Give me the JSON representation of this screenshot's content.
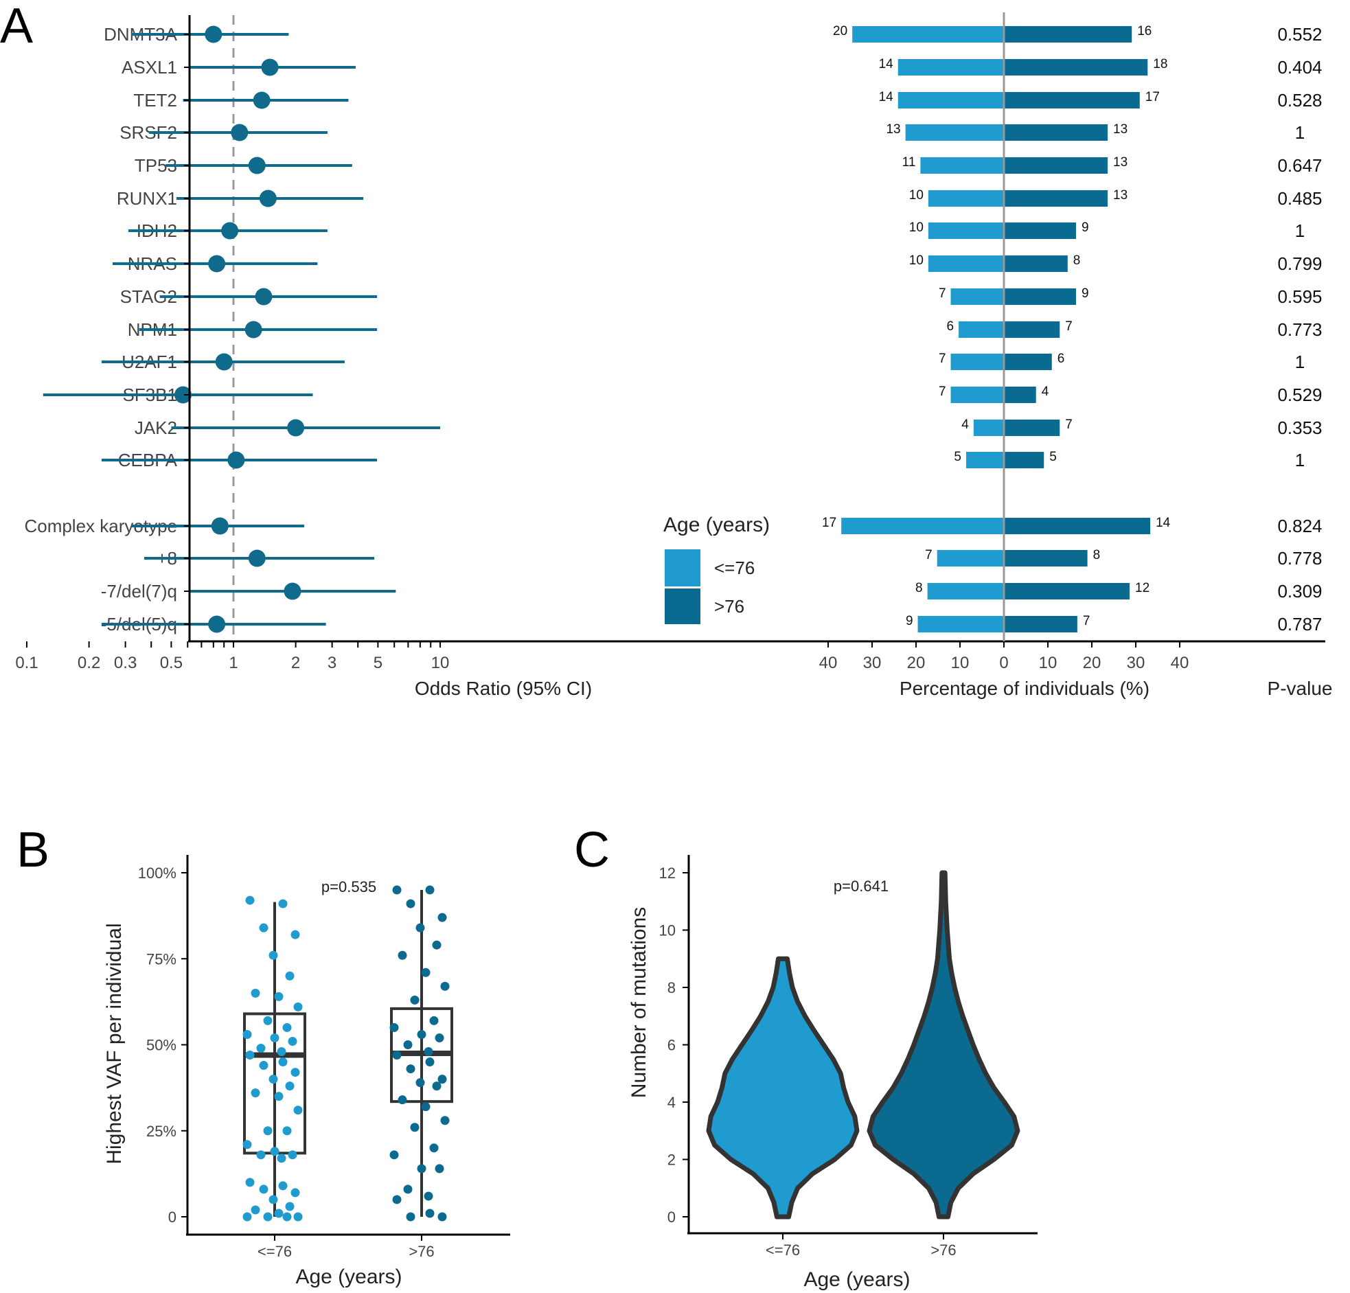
{
  "colors": {
    "young": "#1f9bcf",
    "old": "#0b6a8f",
    "forest": "#0f6a8b",
    "axis": "#000000",
    "label": "#444444",
    "refline": "#999999",
    "outline": "#333333"
  },
  "panel_letters": [
    "A",
    "B",
    "C"
  ],
  "chart_data": [
    {
      "id": "forest",
      "type": "scatter",
      "subtype": "forest-plot",
      "xlabel": "Odds Ratio (95% CI)",
      "xscale": "log",
      "xlim": [
        0.08,
        11
      ],
      "xticks": [
        0.1,
        0.2,
        0.3,
        0.5,
        1,
        2,
        3,
        5,
        10
      ],
      "xtick_labels": [
        "0.1",
        "0.2",
        "0.3",
        "0.5",
        "1",
        "2",
        "3",
        "5",
        "10"
      ],
      "minor_ticks": [
        0.4,
        0.6,
        0.7,
        0.8,
        0.9,
        4,
        6,
        7,
        8,
        9
      ],
      "reference_line": 1,
      "rows": [
        {
          "label": "DNMT3A",
          "or": 0.8,
          "lo": 0.32,
          "hi": 1.85
        },
        {
          "label": "ASXL1",
          "or": 1.5,
          "lo": 0.62,
          "hi": 3.9
        },
        {
          "label": "TET2",
          "or": 1.37,
          "lo": 0.57,
          "hi": 3.6
        },
        {
          "label": "SRSF2",
          "or": 1.07,
          "lo": 0.39,
          "hi": 2.85
        },
        {
          "label": "TP53",
          "or": 1.3,
          "lo": 0.47,
          "hi": 3.75
        },
        {
          "label": "RUNX1",
          "or": 1.47,
          "lo": 0.53,
          "hi": 4.25
        },
        {
          "label": "IDH2",
          "or": 0.96,
          "lo": 0.31,
          "hi": 2.85
        },
        {
          "label": "NRAS",
          "or": 0.83,
          "lo": 0.26,
          "hi": 2.55
        },
        {
          "label": "STAG2",
          "or": 1.4,
          "lo": 0.44,
          "hi": 4.95
        },
        {
          "label": "NPM1",
          "or": 1.25,
          "lo": 0.35,
          "hi": 4.95
        },
        {
          "label": "U2AF1",
          "or": 0.9,
          "lo": 0.23,
          "hi": 3.45
        },
        {
          "label": "SF3B1",
          "or": 0.57,
          "lo": 0.12,
          "hi": 2.42
        },
        {
          "label": "JAK2",
          "or": 2.0,
          "lo": 0.5,
          "hi": 10.0
        },
        {
          "label": "CEBPA",
          "or": 1.03,
          "lo": 0.23,
          "hi": 4.95
        },
        {
          "label": "Complex karyotype",
          "or": 0.86,
          "lo": 0.32,
          "hi": 2.2
        },
        {
          "label": "+8",
          "or": 1.3,
          "lo": 0.37,
          "hi": 4.8
        },
        {
          "label": "-7/del(7)q",
          "or": 1.93,
          "lo": 0.62,
          "hi": 6.1
        },
        {
          "label": "-5/del(5)q",
          "or": 0.83,
          "lo": 0.23,
          "hi": 2.8
        }
      ]
    },
    {
      "id": "butterfly",
      "type": "bar",
      "subtype": "diverging-horizontal",
      "xlabel": "Percentage of individuals (%)",
      "xlim": [
        -40,
        40
      ],
      "xticks": [
        -40,
        -30,
        -20,
        -10,
        0,
        10,
        20,
        30,
        40
      ],
      "xtick_labels": [
        "40",
        "30",
        "20",
        "10",
        "0",
        "10",
        "20",
        "30",
        "40"
      ],
      "legend_title": "Age (years)",
      "series": [
        {
          "name": "<=76",
          "counts": [
            20,
            14,
            14,
            13,
            11,
            10,
            10,
            10,
            7,
            6,
            7,
            7,
            4,
            5,
            17,
            7,
            8,
            9
          ],
          "percent": [
            34.5,
            24.1,
            24.1,
            22.4,
            19.0,
            17.2,
            17.2,
            17.2,
            12.1,
            10.3,
            12.1,
            12.1,
            6.9,
            8.6,
            37.0,
            15.2,
            17.4,
            19.6
          ]
        },
        {
          "name": ">76",
          "counts": [
            16,
            18,
            17,
            13,
            13,
            13,
            9,
            8,
            9,
            7,
            6,
            4,
            7,
            5,
            14,
            8,
            12,
            7
          ],
          "percent": [
            29.1,
            32.7,
            30.9,
            23.6,
            23.6,
            23.6,
            16.4,
            14.5,
            16.4,
            12.7,
            10.9,
            7.3,
            12.7,
            9.1,
            33.3,
            19.0,
            28.6,
            16.7
          ]
        }
      ]
    },
    {
      "id": "pvalues",
      "type": "table",
      "header": "P-value",
      "values": [
        "0.552",
        "0.404",
        "0.528",
        "1",
        "0.647",
        "0.485",
        "1",
        "0.799",
        "0.595",
        "0.773",
        "1",
        "0.529",
        "0.353",
        "1",
        "0.824",
        "0.778",
        "0.309",
        "0.787"
      ]
    },
    {
      "id": "boxplot",
      "type": "scatter",
      "subtype": "box-with-jitter",
      "xlabel": "Age (years)",
      "ylabel": "Highest VAF per individual",
      "categories": [
        "<=76",
        ">76"
      ],
      "ylim": [
        0,
        100
      ],
      "yticks": [
        0,
        25,
        50,
        75,
        100
      ],
      "ytick_labels": [
        "0",
        "25%",
        "50%",
        "75%",
        "100%"
      ],
      "annotation": "p=0.535",
      "boxes": [
        {
          "group": "<=76",
          "whisker_low": 0,
          "q1": 18.5,
          "median": 47,
          "q3": 59,
          "whisker_high": 91.5
        },
        {
          "group": ">76",
          "whisker_low": 0,
          "q1": 33.5,
          "median": 47.5,
          "q3": 60.5,
          "whisker_high": 95
        }
      ],
      "points": [
        [
          92,
          91,
          84,
          82,
          76,
          70,
          65,
          64,
          61,
          57,
          55,
          53,
          52,
          51,
          49,
          48,
          47,
          45,
          44,
          42,
          40,
          38,
          36,
          35,
          31,
          25,
          25,
          21,
          19,
          18,
          18,
          17,
          10,
          9,
          8,
          7,
          5,
          3,
          2,
          1,
          0,
          0,
          0,
          0
        ],
        [
          95,
          95,
          91,
          87,
          84,
          79,
          76,
          71,
          67,
          63,
          57,
          55,
          53,
          52,
          50,
          48,
          47,
          45,
          43,
          40,
          39,
          38,
          34,
          32,
          28,
          26,
          20,
          18,
          14,
          14,
          8,
          6,
          5,
          1,
          0,
          0
        ]
      ]
    },
    {
      "id": "violin",
      "type": "area",
      "subtype": "violin",
      "xlabel": "Age (years)",
      "ylabel": "Number of mutations",
      "categories": [
        "<=76",
        ">76"
      ],
      "ylim": [
        0,
        12
      ],
      "yticks": [
        0,
        2,
        4,
        6,
        8,
        10,
        12
      ],
      "annotation": "p=0.641",
      "density_profiles": [
        {
          "group": "<=76",
          "points": [
            [
              0,
              0.08
            ],
            [
              0.5,
              0.12
            ],
            [
              1,
              0.2
            ],
            [
              1.5,
              0.4
            ],
            [
              2,
              0.7
            ],
            [
              2.5,
              0.92
            ],
            [
              3,
              1.0
            ],
            [
              3.5,
              0.97
            ],
            [
              4,
              0.88
            ],
            [
              4.5,
              0.82
            ],
            [
              5,
              0.78
            ],
            [
              5.5,
              0.68
            ],
            [
              6,
              0.55
            ],
            [
              6.5,
              0.42
            ],
            [
              7,
              0.3
            ],
            [
              7.5,
              0.2
            ],
            [
              8,
              0.13
            ],
            [
              8.5,
              0.09
            ],
            [
              9,
              0.06
            ]
          ]
        },
        {
          "group": ">76",
          "points": [
            [
              0,
              0.06
            ],
            [
              0.5,
              0.1
            ],
            [
              1,
              0.2
            ],
            [
              1.5,
              0.4
            ],
            [
              2,
              0.68
            ],
            [
              2.5,
              0.92
            ],
            [
              3,
              1.0
            ],
            [
              3.5,
              0.95
            ],
            [
              4,
              0.82
            ],
            [
              4.5,
              0.68
            ],
            [
              5,
              0.57
            ],
            [
              5.5,
              0.48
            ],
            [
              6,
              0.4
            ],
            [
              6.5,
              0.33
            ],
            [
              7,
              0.26
            ],
            [
              7.5,
              0.2
            ],
            [
              8,
              0.15
            ],
            [
              8.5,
              0.11
            ],
            [
              9,
              0.08
            ],
            [
              10,
              0.05
            ],
            [
              11,
              0.03
            ],
            [
              12,
              0.02
            ]
          ]
        }
      ]
    }
  ]
}
